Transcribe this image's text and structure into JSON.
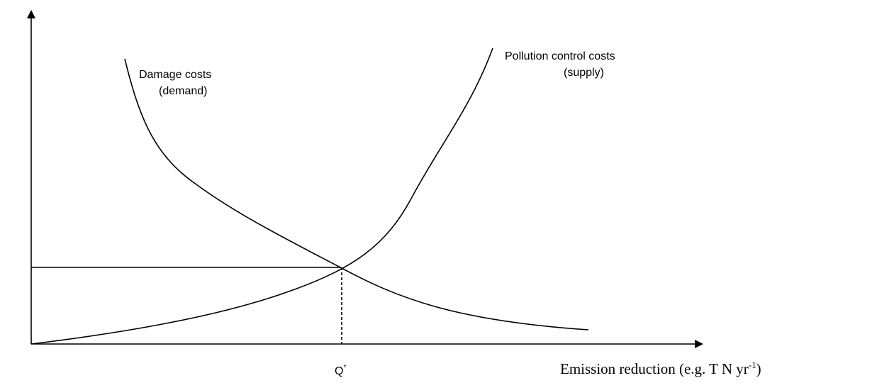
{
  "labels": {
    "demand": [
      "Damage costs",
      "(demand)"
    ],
    "supply": [
      "Pollution control costs",
      "(supply)"
    ],
    "q_star": {
      "base": "Q",
      "sup": "*"
    },
    "x_axis": {
      "base": "Emission reduction (e.g. T N yr",
      "sup": "-1",
      "tail": ")"
    }
  }
}
